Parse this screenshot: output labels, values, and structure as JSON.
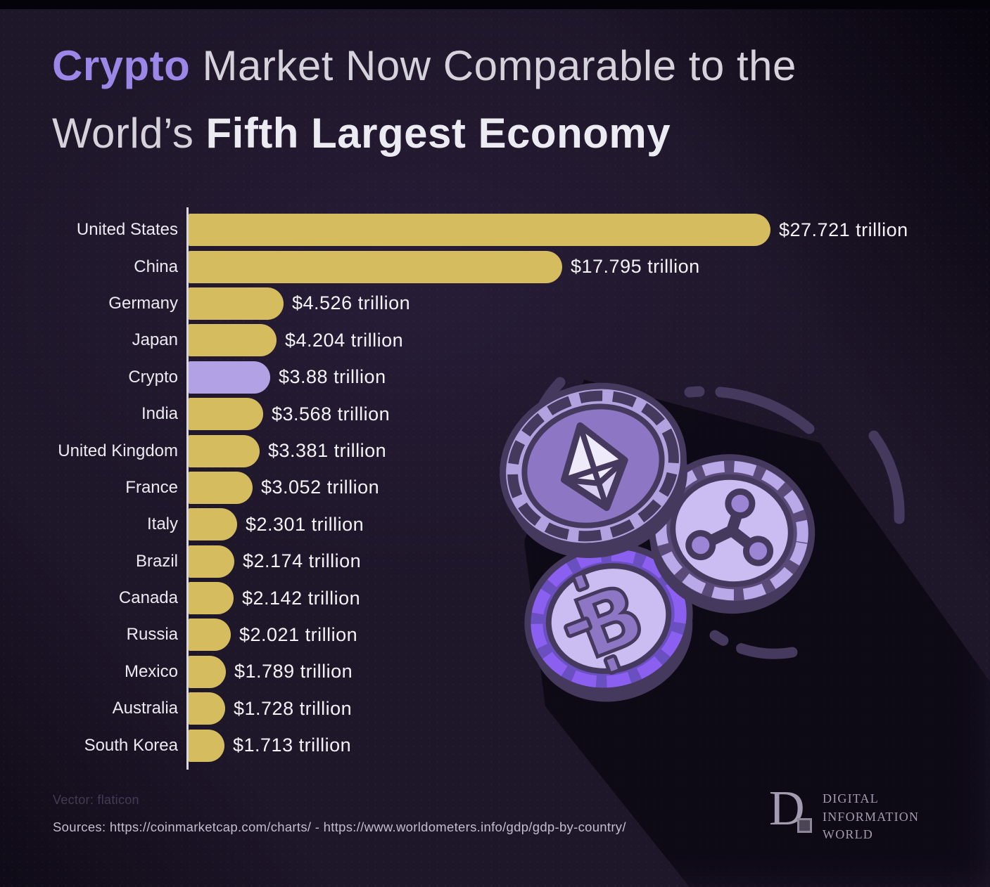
{
  "title": {
    "accent": "Crypto",
    "line1_rest": " Market Now Comparable to the",
    "line2_light": "World’s ",
    "line2_bold": "Fifth Largest Economy"
  },
  "chart_data": {
    "type": "bar",
    "orientation": "horizontal",
    "title": "Crypto Market Now Comparable to the World's Fifth Largest Economy",
    "unit": "trillion USD",
    "categories": [
      "United States",
      "China",
      "Germany",
      "Japan",
      "Crypto",
      "India",
      "United Kingdom",
      "France",
      "Italy",
      "Brazil",
      "Canada",
      "Russia",
      "Mexico",
      "Australia",
      "South Korea"
    ],
    "values": [
      27.721,
      17.795,
      4.526,
      4.204,
      3.88,
      3.568,
      3.381,
      3.052,
      2.301,
      2.174,
      2.142,
      2.021,
      1.789,
      1.728,
      1.713
    ],
    "value_labels": [
      "$27.721 trillion",
      "$17.795 trillion",
      "$4.526 trillion",
      "$4.204 trillion",
      "$3.88 trillion",
      "$3.568 trillion",
      "$3.381 trillion",
      "$3.052 trillion",
      "$2.301 trillion",
      "$2.174 trillion",
      "$2.142 trillion",
      "$2.021 trillion",
      "$1.789 trillion",
      "$1.728 trillion",
      "$1.713 trillion"
    ],
    "highlight_category": "Crypto",
    "highlight_index": 4,
    "bar_color": "#d5bc5e",
    "highlight_color": "#b2a1e5",
    "xlim": [
      0,
      29.5
    ],
    "grid": false,
    "legend": "none",
    "value_label_position": "right of bar"
  },
  "illustration": {
    "name": "crypto-coins",
    "coins": [
      "ethereum",
      "ripple",
      "bitcoin"
    ]
  },
  "footer": {
    "vector_credit": "Vector: flaticon",
    "sources": "Sources: https://coinmarketcap.com/charts/ - https://www.worldometers.info/gdp/gdp-by-country/"
  },
  "logo": {
    "mark": "D",
    "lines": [
      "DIGITAL",
      "INFORMATION",
      "WORLD"
    ]
  },
  "colors": {
    "background": "#1e1629",
    "accent_purple": "#9c87e8",
    "gold_bar": "#d5bc5e",
    "purple_bar": "#b2a1e5",
    "title_light": "#d6d2dc",
    "title_white": "#edebf2",
    "value_text": "#f4f2f7",
    "coin_outline": "#46395e",
    "coin_face_light": "#cbbcf2",
    "coin_face_medium": "#8d77c5",
    "coin_rim_bright": "#8b5ff0"
  }
}
